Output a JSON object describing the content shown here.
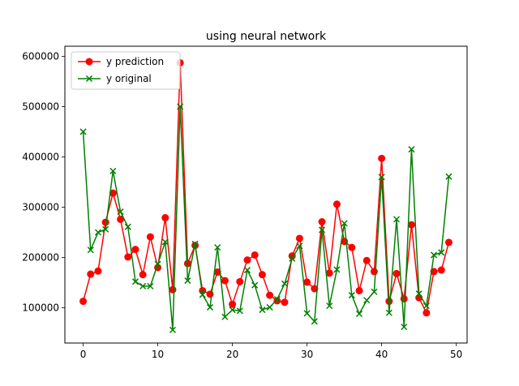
{
  "chart_data": {
    "type": "line",
    "title": "using neural network",
    "xlabel": "",
    "ylabel": "",
    "xlim": [
      -2.45,
      51.45
    ],
    "ylim": [
      30000,
      620000
    ],
    "xticks": [
      0,
      10,
      20,
      30,
      40,
      50
    ],
    "yticks": [
      100000,
      200000,
      300000,
      400000,
      500000,
      600000
    ],
    "grid": false,
    "legend_position": "top-left",
    "series": [
      {
        "name": "y prediction",
        "color": "#ff0000",
        "marker": "circle",
        "x": [
          0,
          1,
          2,
          3,
          4,
          5,
          6,
          7,
          8,
          9,
          10,
          11,
          12,
          13,
          14,
          15,
          16,
          17,
          18,
          19,
          20,
          21,
          22,
          23,
          24,
          25,
          26,
          27,
          28,
          29,
          30,
          31,
          32,
          33,
          34,
          35,
          36,
          37,
          38,
          39,
          40,
          41,
          42,
          43,
          44,
          45,
          46,
          47,
          48,
          49
        ],
        "values": [
          113000,
          167000,
          173000,
          270000,
          328000,
          276000,
          201000,
          216000,
          166000,
          241000,
          180000,
          279000,
          136000,
          587000,
          188000,
          224000,
          134000,
          127000,
          171000,
          154000,
          107000,
          152000,
          195000,
          205000,
          166000,
          125000,
          114000,
          111000,
          203000,
          238000,
          151000,
          138000,
          271000,
          169000,
          306000,
          232000,
          220000,
          134000,
          194000,
          172000,
          397000,
          113000,
          168000,
          118000,
          265000,
          120000,
          90000,
          172000,
          175000,
          230000
        ]
      },
      {
        "name": "y original",
        "color": "#008000",
        "marker": "x",
        "x": [
          0,
          1,
          2,
          3,
          4,
          5,
          6,
          7,
          8,
          9,
          10,
          11,
          12,
          13,
          14,
          15,
          16,
          17,
          18,
          19,
          20,
          21,
          22,
          23,
          24,
          25,
          26,
          27,
          28,
          29,
          30,
          31,
          32,
          33,
          34,
          35,
          36,
          37,
          38,
          39,
          40,
          41,
          42,
          43,
          44,
          45,
          46,
          47,
          48,
          49
        ],
        "values": [
          450000,
          215000,
          250000,
          256000,
          372000,
          291000,
          261000,
          152000,
          143000,
          143000,
          187000,
          231000,
          56000,
          500000,
          154000,
          227000,
          126000,
          101000,
          220000,
          82000,
          96000,
          94000,
          175000,
          145000,
          96000,
          101000,
          117000,
          148000,
          198000,
          223000,
          89000,
          73000,
          255000,
          104000,
          176000,
          268000,
          125000,
          88000,
          115000,
          132000,
          360000,
          90000,
          276000,
          62000,
          415000,
          128000,
          104000,
          205000,
          210000,
          361000
        ]
      }
    ]
  }
}
